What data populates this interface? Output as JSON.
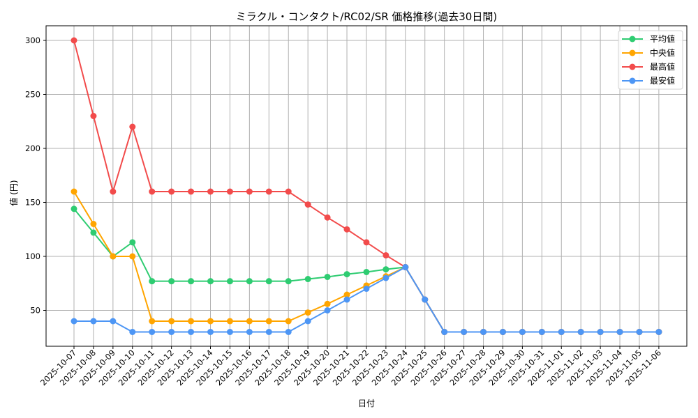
{
  "chart_data": {
    "type": "line",
    "title": "ミラクル・コンタクト/RC02/SR 価格推移(過去30日間)",
    "xlabel": "日付",
    "ylabel": "値 (円)",
    "ylim": [
      15,
      313
    ],
    "yticks": [
      50,
      100,
      150,
      200,
      250,
      300
    ],
    "grid": true,
    "legend_position": "upper right",
    "categories": [
      "2025-10-07",
      "2025-10-08",
      "2025-10-09",
      "2025-10-10",
      "2025-10-11",
      "2025-10-12",
      "2025-10-13",
      "2025-10-14",
      "2025-10-15",
      "2025-10-16",
      "2025-10-17",
      "2025-10-18",
      "2025-10-19",
      "2025-10-20",
      "2025-10-21",
      "2025-10-22",
      "2025-10-23",
      "2025-10-24",
      "2025-10-25",
      "2025-10-26",
      "2025-10-27",
      "2025-10-28",
      "2025-10-29",
      "2025-10-30",
      "2025-10-31",
      "2025-11-01",
      "2025-11-02",
      "2025-11-03",
      "2025-11-04",
      "2025-11-05",
      "2025-11-06"
    ],
    "series": [
      {
        "name": "平均値",
        "color": "#2ecc71",
        "values": [
          144,
          122,
          100,
          113,
          77,
          77,
          77,
          77,
          77,
          77,
          77,
          77,
          79,
          81,
          83.5,
          85.5,
          88,
          90,
          60,
          30,
          30,
          30,
          30,
          30,
          30,
          30,
          30,
          30,
          30,
          30,
          30
        ]
      },
      {
        "name": "中央値",
        "color": "#ffa500",
        "values": [
          160,
          130,
          100,
          100,
          40,
          40,
          40,
          40,
          40,
          40,
          40,
          40,
          48,
          56,
          64.5,
          73,
          81.5,
          90,
          60,
          30,
          30,
          30,
          30,
          30,
          30,
          30,
          30,
          30,
          30,
          30,
          30
        ]
      },
      {
        "name": "最高値",
        "color": "#f24b4b",
        "values": [
          300,
          230,
          160,
          220,
          160,
          160,
          160,
          160,
          160,
          160,
          160,
          160,
          148,
          136,
          125,
          113,
          101,
          90,
          60,
          30,
          30,
          30,
          30,
          30,
          30,
          30,
          30,
          30,
          30,
          30,
          30
        ]
      },
      {
        "name": "最安値",
        "color": "#4d96f5",
        "values": [
          40,
          40,
          40,
          30,
          30,
          30,
          30,
          30,
          30,
          30,
          30,
          30,
          40,
          50,
          60,
          70,
          80,
          90,
          60,
          30,
          30,
          30,
          30,
          30,
          30,
          30,
          30,
          30,
          30,
          30,
          30
        ]
      }
    ]
  }
}
